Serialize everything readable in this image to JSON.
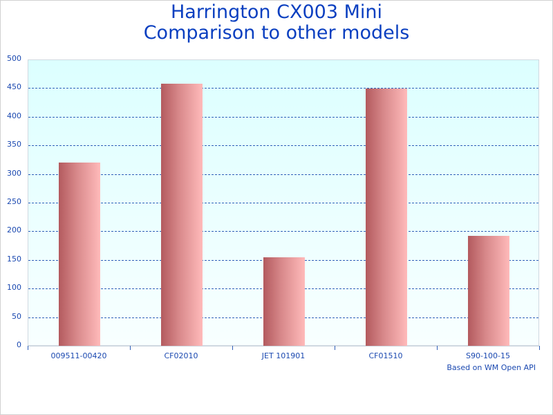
{
  "title_line1": "Harrington CX003 Mini",
  "title_line2": "Comparison to other models",
  "footnote": "Based on WM Open API",
  "y_ticks": [
    "0",
    "50",
    "100",
    "150",
    "200",
    "250",
    "300",
    "350",
    "400",
    "450",
    "500"
  ],
  "chart_data": {
    "type": "bar",
    "title": "Harrington CX003 Mini Comparison to other models",
    "categories": [
      "009511-00420",
      "CF02010",
      "JET 101901",
      "CF01510",
      "S90-100-15"
    ],
    "values": [
      320,
      458,
      155,
      449,
      192
    ],
    "xlabel": "",
    "ylabel": "",
    "ylim": [
      0,
      500
    ],
    "y_ticks": [
      0,
      50,
      100,
      150,
      200,
      250,
      300,
      350,
      400,
      450,
      500
    ],
    "grid": true,
    "legend": "none",
    "annotations": [
      "Based on WM Open API"
    ],
    "colors": {
      "bar_dark": "#b35a5e",
      "bar_light": "#ffbaba",
      "text": "#1a48b0",
      "title": "#0a3fc0"
    }
  }
}
